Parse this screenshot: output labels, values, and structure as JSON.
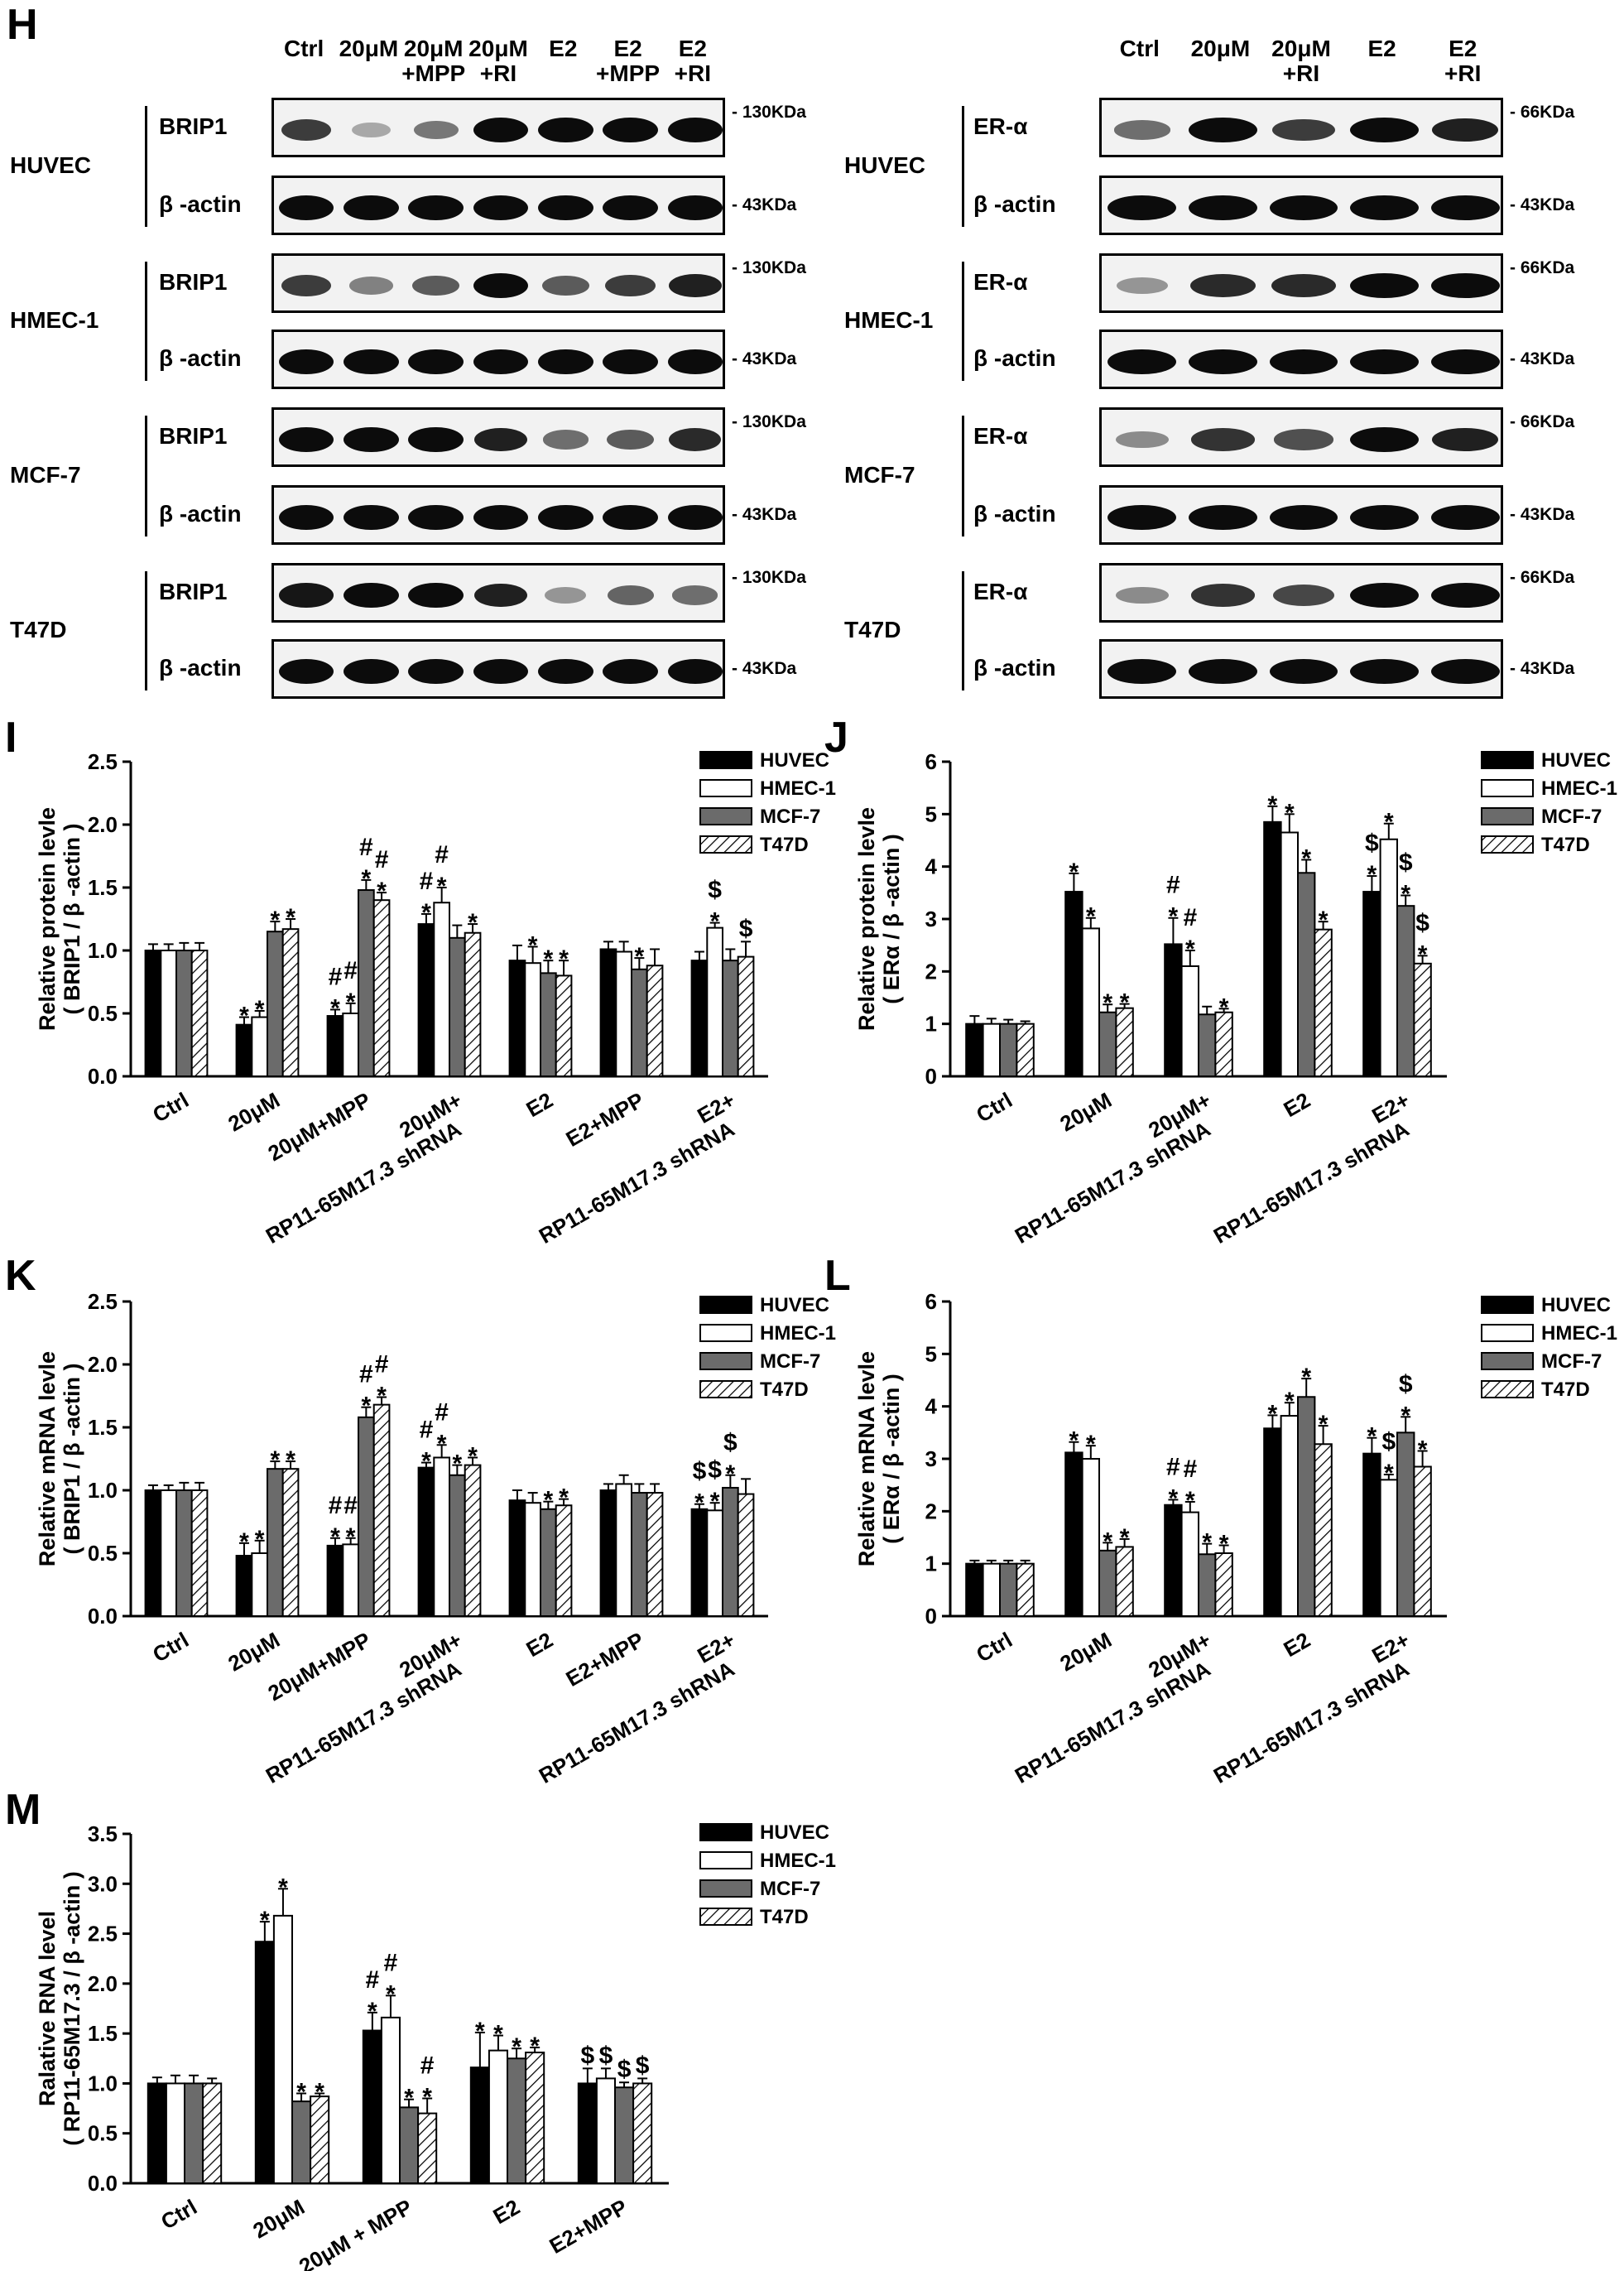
{
  "panel_letters": [
    "H",
    "I",
    "J",
    "K",
    "L",
    "M"
  ],
  "blot_left": {
    "lanes": [
      "Ctrl",
      "20μM",
      "20μM\n+MPP",
      "20μM\n+RI",
      "E2",
      "E2\n+MPP",
      "E2\n+RI"
    ],
    "cells": [
      "HUVEC",
      "HMEC-1",
      "MCF-7",
      "T47D"
    ],
    "rows": [
      {
        "label": "BRIP1",
        "kda": "130KDa",
        "intensity": [
          0.75,
          0.2,
          0.45,
          1.0,
          1.0,
          1.0,
          1.0
        ]
      },
      {
        "label": "β -actin",
        "kda": "43KDa",
        "intensity": [
          1,
          1,
          1,
          1,
          1,
          1,
          1
        ]
      },
      {
        "label": "BRIP1",
        "kda": "130KDa",
        "intensity": [
          0.75,
          0.4,
          0.6,
          1.0,
          0.6,
          0.75,
          0.9
        ]
      },
      {
        "label": "β -actin",
        "kda": "43KDa",
        "intensity": [
          1,
          1,
          1,
          1,
          1,
          1,
          1
        ]
      },
      {
        "label": "BRIP1",
        "kda": "130KDa",
        "intensity": [
          1.0,
          1.0,
          1.0,
          0.9,
          0.5,
          0.6,
          0.85
        ]
      },
      {
        "label": "β -actin",
        "kda": "43KDa",
        "intensity": [
          1,
          1,
          1,
          1,
          1,
          1,
          1
        ]
      },
      {
        "label": "BRIP1",
        "kda": "130KDa",
        "intensity": [
          0.95,
          1.0,
          1.0,
          0.9,
          0.3,
          0.55,
          0.5
        ]
      },
      {
        "label": "β -actin",
        "kda": "43KDa",
        "intensity": [
          1,
          1,
          1,
          1,
          1,
          1,
          1
        ]
      }
    ]
  },
  "blot_right": {
    "lanes": [
      "Ctrl",
      "20μM",
      "20μM\n+RI",
      "E2",
      "E2\n+RI"
    ],
    "cells": [
      "HUVEC",
      "HMEC-1",
      "MCF-7",
      "T47D"
    ],
    "rows": [
      {
        "label": "ER-α",
        "kda": "66KDa",
        "intensity": [
          0.5,
          1.0,
          0.75,
          1.0,
          0.9
        ]
      },
      {
        "label": "β -actin",
        "kda": "43KDa",
        "intensity": [
          1,
          1,
          1,
          1,
          1
        ]
      },
      {
        "label": "ER-α",
        "kda": "66KDa",
        "intensity": [
          0.3,
          0.85,
          0.85,
          1.0,
          1.0
        ]
      },
      {
        "label": "β -actin",
        "kda": "43KDa",
        "intensity": [
          1,
          1,
          1,
          1,
          1
        ]
      },
      {
        "label": "ER-α",
        "kda": "66KDa",
        "intensity": [
          0.35,
          0.8,
          0.65,
          1.0,
          0.9
        ]
      },
      {
        "label": "β -actin",
        "kda": "43KDa",
        "intensity": [
          1,
          1,
          1,
          1,
          1
        ]
      },
      {
        "label": "ER-α",
        "kda": "66KDa",
        "intensity": [
          0.35,
          0.8,
          0.7,
          1.0,
          1.0
        ]
      },
      {
        "label": "β -actin",
        "kda": "43KDa",
        "intensity": [
          1,
          1,
          1,
          1,
          1
        ]
      }
    ]
  },
  "colors": {
    "HUVEC": "#000000",
    "HMEC-1": "#ffffff",
    "MCF-7": "#6b6b6b",
    "T47D": "hatch"
  },
  "chart_data": [
    {
      "id": "I",
      "type": "bar",
      "ylabel": [
        "Relative protein levle",
        "( BRIP1 / β -actin )"
      ],
      "ylim": [
        0,
        2.5
      ],
      "yticks": [
        "0.0",
        "0.5",
        "1.0",
        "1.5",
        "2.0",
        "2.5"
      ],
      "categories": [
        "Ctrl",
        "20μM",
        "20μM+MPP",
        "20μM+\nRP11-65M17.3 shRNA",
        "E2",
        "E2+MPP",
        "E2+\nRP11-65M17.3 shRNA"
      ],
      "legend": [
        "HUVEC",
        "HMEC-1",
        "MCF-7",
        "T47D"
      ],
      "series": [
        {
          "name": "HUVEC",
          "values": [
            1.0,
            0.41,
            0.48,
            1.21,
            0.92,
            1.01,
            0.92
          ],
          "errors": [
            0.05,
            0.06,
            0.05,
            0.08,
            0.12,
            0.06,
            0.07
          ]
        },
        {
          "name": "HMEC-1",
          "values": [
            1.0,
            0.47,
            0.5,
            1.38,
            0.9,
            0.99,
            1.18
          ],
          "errors": [
            0.05,
            0.05,
            0.08,
            0.12,
            0.13,
            0.08,
            0.04
          ]
        },
        {
          "name": "MCF-7",
          "values": [
            1.0,
            1.15,
            1.48,
            1.1,
            0.82,
            0.85,
            0.92
          ],
          "errors": [
            0.06,
            0.08,
            0.08,
            0.1,
            0.1,
            0.09,
            0.09
          ]
        },
        {
          "name": "T47D",
          "values": [
            1.0,
            1.17,
            1.4,
            1.14,
            0.8,
            0.88,
            0.95
          ],
          "errors": [
            0.06,
            0.08,
            0.06,
            0.07,
            0.12,
            0.13,
            0.12
          ]
        }
      ],
      "annotations": [
        {
          "c": 1,
          "s": 0,
          "text": "*"
        },
        {
          "c": 1,
          "s": 1,
          "text": "*"
        },
        {
          "c": 1,
          "s": 2,
          "text": "*"
        },
        {
          "c": 1,
          "s": 3,
          "text": "*"
        },
        {
          "c": 2,
          "s": 0,
          "text": "#\n*"
        },
        {
          "c": 2,
          "s": 1,
          "text": "#\n*"
        },
        {
          "c": 2,
          "s": 2,
          "text": "#\n*"
        },
        {
          "c": 2,
          "s": 3,
          "text": "#\n*"
        },
        {
          "c": 3,
          "s": 0,
          "text": "#\n*"
        },
        {
          "c": 3,
          "s": 1,
          "text": "#\n*"
        },
        {
          "c": 3,
          "s": 3,
          "text": "*"
        },
        {
          "c": 4,
          "s": 1,
          "text": "*"
        },
        {
          "c": 4,
          "s": 2,
          "text": "*"
        },
        {
          "c": 4,
          "s": 3,
          "text": "*"
        },
        {
          "c": 5,
          "s": 2,
          "text": "*"
        },
        {
          "c": 6,
          "s": 1,
          "text": "$\n*"
        },
        {
          "c": 6,
          "s": 3,
          "text": "$"
        }
      ]
    },
    {
      "id": "J",
      "type": "bar",
      "ylabel": [
        "Relative protein levle",
        "( ERα / β -actin )"
      ],
      "ylim": [
        0,
        6
      ],
      "yticks": [
        "0",
        "1",
        "2",
        "3",
        "4",
        "5",
        "6"
      ],
      "categories": [
        "Ctrl",
        "20μM",
        "20μM+\nRP11-65M17.3 shRNA",
        "E2",
        "E2+\nRP11-65M17.3 shRNA"
      ],
      "legend": [
        "HUVEC",
        "HMEC-1",
        "MCF-7",
        "T47D"
      ],
      "series": [
        {
          "name": "HUVEC",
          "values": [
            1.0,
            3.52,
            2.52,
            4.85,
            3.52
          ],
          "errors": [
            0.15,
            0.35,
            0.5,
            0.3,
            0.3
          ]
        },
        {
          "name": "HMEC-1",
          "values": [
            1.0,
            2.82,
            2.1,
            4.65,
            4.52
          ],
          "errors": [
            0.1,
            0.2,
            0.3,
            0.35,
            0.3
          ]
        },
        {
          "name": "MCF-7",
          "values": [
            1.0,
            1.22,
            1.18,
            3.88,
            3.25
          ],
          "errors": [
            0.08,
            0.15,
            0.15,
            0.25,
            0.2
          ]
        },
        {
          "name": "T47D",
          "values": [
            1.0,
            1.3,
            1.22,
            2.8,
            2.15
          ],
          "errors": [
            0.05,
            0.08,
            0.07,
            0.15,
            0.15
          ]
        }
      ],
      "annotations": [
        {
          "c": 1,
          "s": 0,
          "text": "*"
        },
        {
          "c": 1,
          "s": 1,
          "text": "*"
        },
        {
          "c": 1,
          "s": 2,
          "text": "*"
        },
        {
          "c": 1,
          "s": 3,
          "text": "*"
        },
        {
          "c": 2,
          "s": 0,
          "text": "#\n*"
        },
        {
          "c": 2,
          "s": 1,
          "text": "#\n*"
        },
        {
          "c": 2,
          "s": 3,
          "text": "*"
        },
        {
          "c": 3,
          "s": 0,
          "text": "*"
        },
        {
          "c": 3,
          "s": 1,
          "text": "*"
        },
        {
          "c": 3,
          "s": 2,
          "text": "*"
        },
        {
          "c": 3,
          "s": 3,
          "text": "*"
        },
        {
          "c": 4,
          "s": 0,
          "text": "$\n*"
        },
        {
          "c": 4,
          "s": 1,
          "text": "*"
        },
        {
          "c": 4,
          "s": 2,
          "text": "$\n*"
        },
        {
          "c": 4,
          "s": 3,
          "text": "$\n*"
        }
      ]
    },
    {
      "id": "K",
      "type": "bar",
      "ylabel": [
        "Relative mRNA levle",
        "( BRIP1 / β -actin )"
      ],
      "ylim": [
        0,
        2.5
      ],
      "yticks": [
        "0.0",
        "0.5",
        "1.0",
        "1.5",
        "2.0",
        "2.5"
      ],
      "categories": [
        "Ctrl",
        "20μM",
        "20μM+MPP",
        "20μM+\nRP11-65M17.3 shRNA",
        "E2",
        "E2+MPP",
        "E2+\nRP11-65M17.3 shRNA"
      ],
      "legend": [
        "HUVEC",
        "HMEC-1",
        "MCF-7",
        "T47D"
      ],
      "series": [
        {
          "name": "HUVEC",
          "values": [
            1.0,
            0.48,
            0.56,
            1.18,
            0.92,
            1.0,
            0.85
          ],
          "errors": [
            0.04,
            0.1,
            0.06,
            0.04,
            0.08,
            0.05,
            0.04
          ]
        },
        {
          "name": "HMEC-1",
          "values": [
            1.0,
            0.5,
            0.57,
            1.26,
            0.9,
            1.05,
            0.84
          ],
          "errors": [
            0.04,
            0.1,
            0.05,
            0.1,
            0.08,
            0.07,
            0.06
          ]
        },
        {
          "name": "MCF-7",
          "values": [
            1.0,
            1.17,
            1.58,
            1.12,
            0.85,
            0.98,
            1.02
          ],
          "errors": [
            0.06,
            0.06,
            0.08,
            0.08,
            0.06,
            0.07,
            0.1
          ]
        },
        {
          "name": "T47D",
          "values": [
            1.0,
            1.17,
            1.68,
            1.2,
            0.88,
            0.98,
            0.97
          ],
          "errors": [
            0.06,
            0.06,
            0.06,
            0.06,
            0.05,
            0.07,
            0.12
          ]
        }
      ],
      "annotations": [
        {
          "c": 1,
          "s": 0,
          "text": "*"
        },
        {
          "c": 1,
          "s": 1,
          "text": "*"
        },
        {
          "c": 1,
          "s": 2,
          "text": "*"
        },
        {
          "c": 1,
          "s": 3,
          "text": "*"
        },
        {
          "c": 2,
          "s": 0,
          "text": "#\n*"
        },
        {
          "c": 2,
          "s": 1,
          "text": "#\n*"
        },
        {
          "c": 2,
          "s": 2,
          "text": "#\n*"
        },
        {
          "c": 2,
          "s": 3,
          "text": "#\n*"
        },
        {
          "c": 3,
          "s": 0,
          "text": "#\n*"
        },
        {
          "c": 3,
          "s": 1,
          "text": "#\n*"
        },
        {
          "c": 3,
          "s": 2,
          "text": "*"
        },
        {
          "c": 3,
          "s": 3,
          "text": "*"
        },
        {
          "c": 4,
          "s": 2,
          "text": "*"
        },
        {
          "c": 4,
          "s": 3,
          "text": "*"
        },
        {
          "c": 6,
          "s": 0,
          "text": "$\n*"
        },
        {
          "c": 6,
          "s": 1,
          "text": "$\n*"
        },
        {
          "c": 6,
          "s": 2,
          "text": "$\n*"
        }
      ]
    },
    {
      "id": "L",
      "type": "bar",
      "ylabel": [
        "Relative mRNA levle",
        "( ERα / β -actin )"
      ],
      "ylim": [
        0,
        6
      ],
      "yticks": [
        "0",
        "1",
        "2",
        "3",
        "4",
        "5",
        "6"
      ],
      "categories": [
        "Ctrl",
        "20μM",
        "20μM+\nRP11-65M17.3 shRNA",
        "E2",
        "E2+\nRP11-65M17.3 shRNA"
      ],
      "legend": [
        "HUVEC",
        "HMEC-1",
        "MCF-7",
        "T47D"
      ],
      "series": [
        {
          "name": "HUVEC",
          "values": [
            1.0,
            3.12,
            2.12,
            3.58,
            3.1
          ],
          "errors": [
            0.06,
            0.2,
            0.1,
            0.25,
            0.3
          ]
        },
        {
          "name": "HMEC-1",
          "values": [
            1.0,
            3.0,
            1.98,
            3.82,
            2.6
          ],
          "errors": [
            0.06,
            0.25,
            0.2,
            0.25,
            0.1
          ]
        },
        {
          "name": "MCF-7",
          "values": [
            1.0,
            1.25,
            1.18,
            4.18,
            3.5
          ],
          "errors": [
            0.06,
            0.15,
            0.2,
            0.35,
            0.3
          ]
        },
        {
          "name": "T47D",
          "values": [
            1.0,
            1.32,
            1.2,
            3.28,
            2.85
          ],
          "errors": [
            0.06,
            0.15,
            0.15,
            0.35,
            0.3
          ]
        }
      ],
      "annotations": [
        {
          "c": 1,
          "s": 0,
          "text": "*"
        },
        {
          "c": 1,
          "s": 1,
          "text": "*"
        },
        {
          "c": 1,
          "s": 2,
          "text": "*"
        },
        {
          "c": 1,
          "s": 3,
          "text": "*"
        },
        {
          "c": 2,
          "s": 0,
          "text": "#\n*"
        },
        {
          "c": 2,
          "s": 1,
          "text": "#\n*"
        },
        {
          "c": 2,
          "s": 2,
          "text": "*"
        },
        {
          "c": 2,
          "s": 3,
          "text": "*"
        },
        {
          "c": 3,
          "s": 0,
          "text": "*"
        },
        {
          "c": 3,
          "s": 1,
          "text": "*"
        },
        {
          "c": 3,
          "s": 2,
          "text": "*"
        },
        {
          "c": 3,
          "s": 3,
          "text": "*"
        },
        {
          "c": 4,
          "s": 0,
          "text": "*"
        },
        {
          "c": 4,
          "s": 1,
          "text": "$\n*"
        },
        {
          "c": 4,
          "s": 2,
          "text": "$\n*"
        },
        {
          "c": 4,
          "s": 3,
          "text": "*"
        }
      ]
    },
    {
      "id": "M",
      "type": "bar",
      "ylabel": [
        "Ralative RNA level",
        "( RP11-65M17.3 / β -actin )"
      ],
      "ylim": [
        0,
        3.5
      ],
      "yticks": [
        "0.0",
        "0.5",
        "1.0",
        "1.5",
        "2.0",
        "2.5",
        "3.0",
        "3.5"
      ],
      "categories": [
        "Ctrl",
        "20μM",
        "20μM + MPP",
        "E2",
        "E2+MPP"
      ],
      "legend": [
        "HUVEC",
        "HMEC-1",
        "MCF-7",
        "T47D"
      ],
      "series": [
        {
          "name": "HUVEC",
          "values": [
            1.0,
            2.42,
            1.53,
            1.16,
            1.0
          ],
          "errors": [
            0.06,
            0.2,
            0.18,
            0.35,
            0.15
          ]
        },
        {
          "name": "HMEC-1",
          "values": [
            1.0,
            2.68,
            1.66,
            1.33,
            1.05
          ],
          "errors": [
            0.08,
            0.27,
            0.22,
            0.15,
            0.1
          ]
        },
        {
          "name": "MCF-7",
          "values": [
            1.0,
            0.82,
            0.76,
            1.25,
            0.96
          ],
          "errors": [
            0.08,
            0.08,
            0.08,
            0.1,
            0.05
          ]
        },
        {
          "name": "T47D",
          "values": [
            1.0,
            0.87,
            0.7,
            1.31,
            1.0
          ],
          "errors": [
            0.05,
            0.03,
            0.15,
            0.05,
            0.05
          ]
        }
      ],
      "annotations": [
        {
          "c": 1,
          "s": 0,
          "text": "*"
        },
        {
          "c": 1,
          "s": 1,
          "text": "*"
        },
        {
          "c": 1,
          "s": 2,
          "text": "*"
        },
        {
          "c": 1,
          "s": 3,
          "text": "*"
        },
        {
          "c": 2,
          "s": 0,
          "text": "#\n*"
        },
        {
          "c": 2,
          "s": 1,
          "text": "#\n*"
        },
        {
          "c": 2,
          "s": 2,
          "text": "*"
        },
        {
          "c": 2,
          "s": 3,
          "text": "#\n*"
        },
        {
          "c": 3,
          "s": 0,
          "text": "*"
        },
        {
          "c": 3,
          "s": 1,
          "text": "*"
        },
        {
          "c": 3,
          "s": 2,
          "text": "*"
        },
        {
          "c": 3,
          "s": 3,
          "text": "*"
        },
        {
          "c": 4,
          "s": 0,
          "text": "$"
        },
        {
          "c": 4,
          "s": 1,
          "text": "$"
        },
        {
          "c": 4,
          "s": 2,
          "text": "$"
        },
        {
          "c": 4,
          "s": 3,
          "text": "$"
        }
      ]
    }
  ]
}
